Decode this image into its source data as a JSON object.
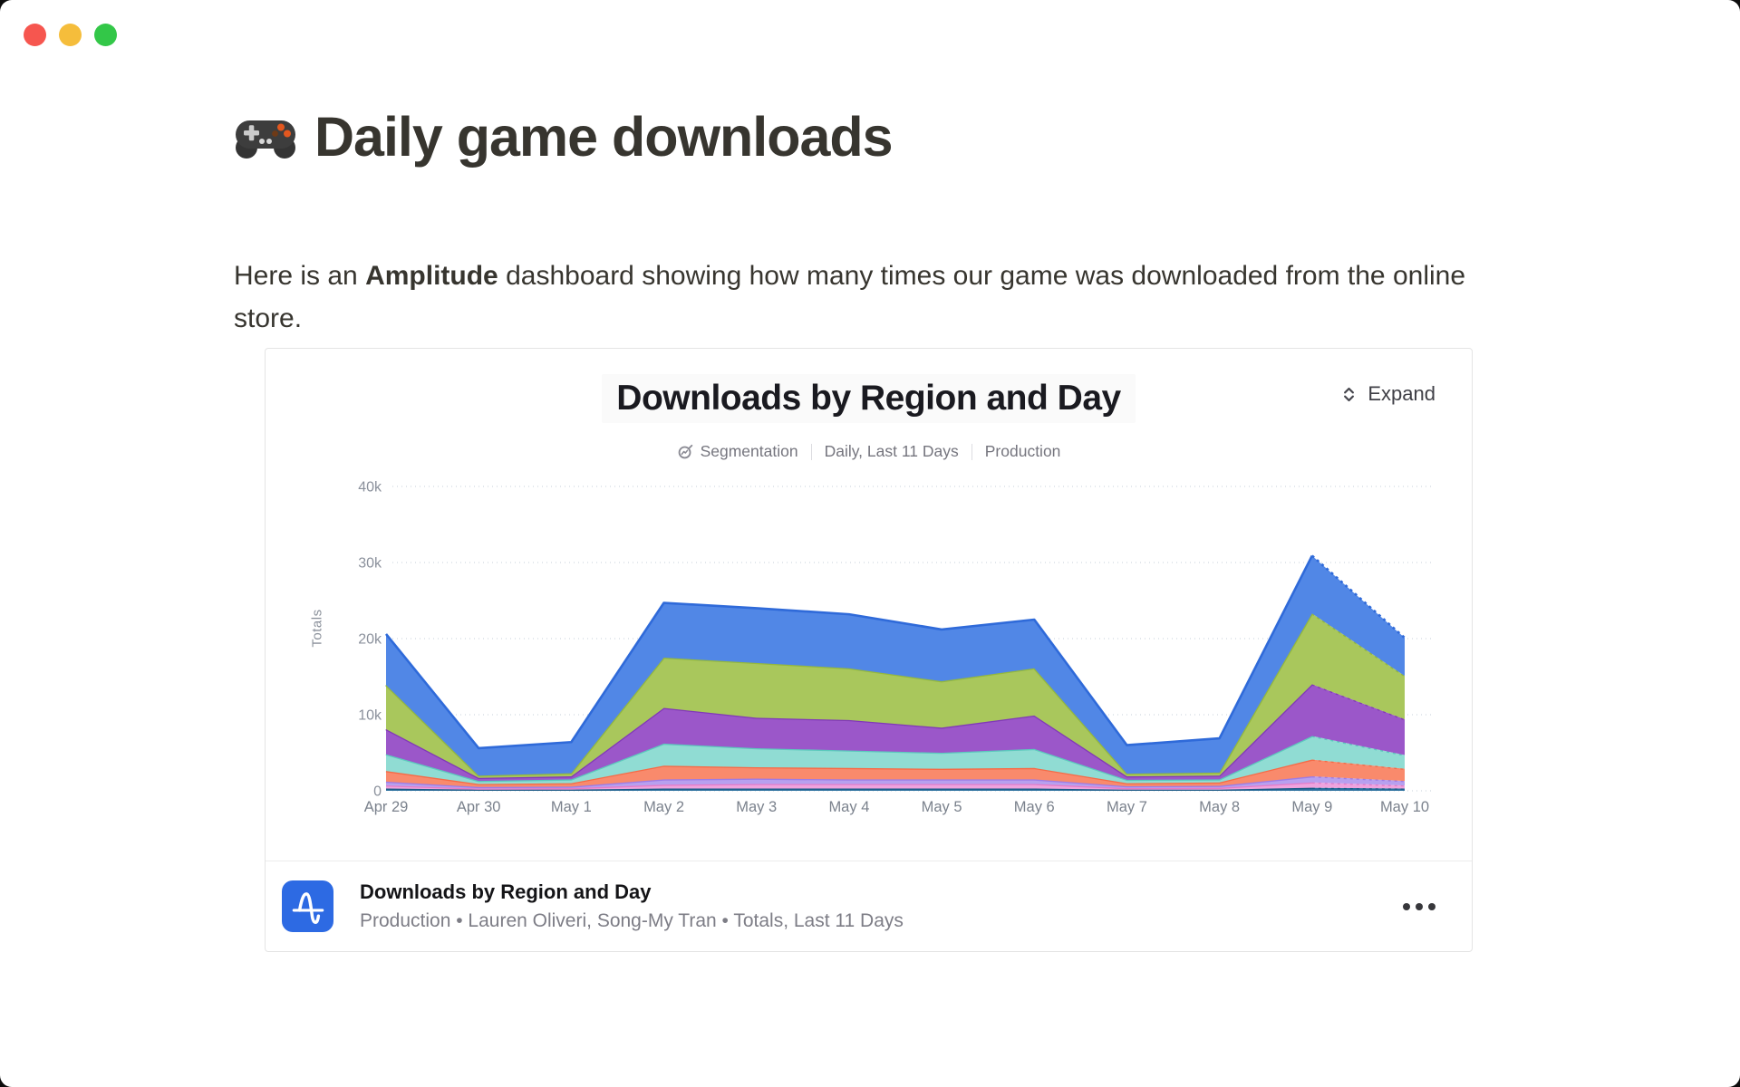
{
  "window": {
    "traffic_light_colors": {
      "close": "#f6564f",
      "minimize": "#f5bd3b",
      "zoom": "#33c748"
    }
  },
  "page": {
    "title": "Daily game downloads",
    "title_emoji": "game-controller",
    "intro_pre": "Here is an ",
    "intro_bold": "Amplitude",
    "intro_post": " dashboard showing how many times our game was downloaded from the online store."
  },
  "card": {
    "title": "Downloads by Region and Day",
    "meta": {
      "mode": "Segmentation",
      "range": "Daily, Last 11 Days",
      "env": "Production"
    },
    "expand_label": "Expand",
    "footer": {
      "title": "Downloads by Region and Day",
      "subtitle": "Production • Lauren Oliveri, Song-My Tran • Totals, Last 11 Days"
    },
    "brand_color": "#2d6ae3"
  },
  "chart_data": {
    "type": "area",
    "stacked": true,
    "title": "Downloads by Region and Day",
    "xlabel": "",
    "ylabel": "Totals",
    "x": [
      "Apr 29",
      "Apr 30",
      "May 1",
      "May 2",
      "May 3",
      "May 4",
      "May 5",
      "May 6",
      "May 7",
      "May 8",
      "May 9",
      "May 10"
    ],
    "y_ticks": [
      "0",
      "10k",
      "20k",
      "30k",
      "40k"
    ],
    "y_tick_values": [
      0,
      10000,
      20000,
      30000,
      40000
    ],
    "ylim": [
      0,
      40000
    ],
    "grid": "horizontal-dotted",
    "legend": "none",
    "note": "final segment May 9 to May 10 rendered dashed (incomplete day); series names not shown on screen, identified by color",
    "series": [
      {
        "name": "dark-blue",
        "color": "#2a6f9e",
        "stroke": "#1c5a85",
        "values": [
          300,
          150,
          150,
          300,
          300,
          300,
          300,
          300,
          150,
          150,
          400,
          300
        ]
      },
      {
        "name": "pink",
        "color": "#efa3de",
        "stroke": "#e47cc8",
        "values": [
          400,
          150,
          200,
          500,
          600,
          600,
          600,
          600,
          200,
          250,
          700,
          400
        ]
      },
      {
        "name": "lavender",
        "color": "#b7a0ef",
        "stroke": "#9d7ce6",
        "values": [
          500,
          200,
          200,
          700,
          700,
          600,
          600,
          600,
          250,
          250,
          800,
          600
        ]
      },
      {
        "name": "orange",
        "color": "#f98a6c",
        "stroke": "#f66a46",
        "values": [
          1400,
          400,
          450,
          1800,
          1500,
          1500,
          1400,
          1500,
          400,
          450,
          2200,
          1600
        ]
      },
      {
        "name": "teal",
        "color": "#90dcd3",
        "stroke": "#5cc9bd",
        "values": [
          2200,
          400,
          500,
          2900,
          2500,
          2300,
          2100,
          2500,
          450,
          400,
          3100,
          1800
        ]
      },
      {
        "name": "purple",
        "color": "#9b57c9",
        "stroke": "#8138b8",
        "values": [
          3300,
          400,
          400,
          4700,
          4000,
          4000,
          3300,
          4400,
          450,
          500,
          6800,
          4700
        ]
      },
      {
        "name": "green",
        "color": "#a9c75c",
        "stroke": "#94b83d",
        "values": [
          5800,
          300,
          400,
          6600,
          7200,
          6800,
          6100,
          6200,
          350,
          400,
          9300,
          5700
        ]
      },
      {
        "name": "blue",
        "color": "#5187e6",
        "stroke": "#2f6ad9",
        "values": [
          6700,
          3600,
          4100,
          7200,
          7200,
          7100,
          6800,
          6400,
          3750,
          4500,
          7600,
          5000
        ]
      }
    ]
  }
}
